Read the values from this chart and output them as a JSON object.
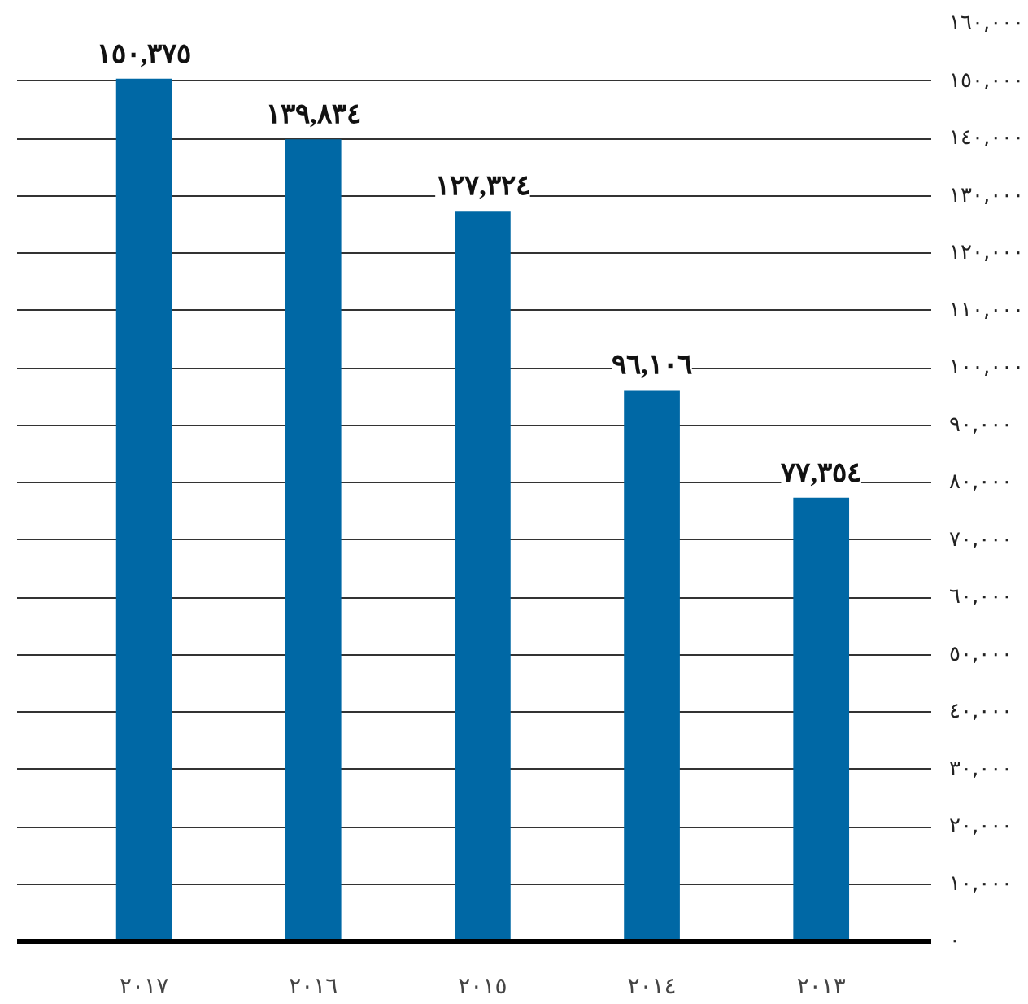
{
  "chart_data": {
    "type": "bar",
    "categories": [
      "٢٠١٧",
      "٢٠١٦",
      "٢٠١٥",
      "٢٠١٤",
      "٢٠١٣"
    ],
    "values": [
      150375,
      139834,
      127324,
      96106,
      77354
    ],
    "value_labels": [
      "١٥٠,٣٧٥",
      "١٣٩,٨٣٤",
      "١٢٧,٣٢٤",
      "٩٦,١٠٦",
      "٧٧,٣٥٤"
    ],
    "color": "#0068a5",
    "ylim": [
      0,
      160000
    ],
    "grid": "y",
    "yticks": [
      {
        "value": 0,
        "label": "٠"
      },
      {
        "value": 10000,
        "label": "١٠,٠٠٠"
      },
      {
        "value": 20000,
        "label": "٢٠,٠٠٠"
      },
      {
        "value": 30000,
        "label": "٣٠,٠٠٠"
      },
      {
        "value": 40000,
        "label": "٤٠,٠٠٠"
      },
      {
        "value": 50000,
        "label": "٥٠,٠٠٠"
      },
      {
        "value": 60000,
        "label": "٦٠,٠٠٠"
      },
      {
        "value": 70000,
        "label": "٧٠,٠٠٠"
      },
      {
        "value": 80000,
        "label": "٨٠,٠٠٠"
      },
      {
        "value": 90000,
        "label": "٩٠,٠٠٠"
      },
      {
        "value": 100000,
        "label": "١٠٠,٠٠٠"
      },
      {
        "value": 110000,
        "label": "١١٠,٠٠٠"
      },
      {
        "value": 120000,
        "label": "١٢٠,٠٠٠"
      },
      {
        "value": 130000,
        "label": "١٣٠,٠٠٠"
      },
      {
        "value": 140000,
        "label": "١٤٠,٠٠٠"
      },
      {
        "value": 150000,
        "label": "١٥٠,٠٠٠"
      },
      {
        "value": 160000,
        "label": "١٦٠,٠٠٠"
      }
    ]
  }
}
